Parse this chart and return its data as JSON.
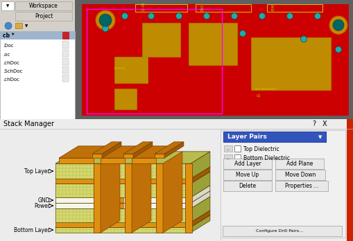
{
  "bg_color": "#ececec",
  "sidebar_bg": "#d4d0c8",
  "pcb_bg": "#606060",
  "pcb_red": "#cc0000",
  "orange_bright": "#e8900a",
  "orange_mid": "#c07008",
  "orange_dark": "#a06005",
  "green_light": "#d8dc80",
  "green_mid": "#c0c460",
  "green_dark": "#a8ac48",
  "green_hatch_bg": "#d0d470",
  "white_layer": "#f8f8f0",
  "white_layer_side": "#dcdcd0",
  "title_text": "Stack Manager",
  "layer_labels": [
    "Top Layer",
    "GND",
    "Power",
    "Bottom Layer"
  ],
  "right_panel_title": "Layer Pairs",
  "right_buttons": [
    "Add Layer",
    "Add Plane",
    "Move Up",
    "Move Down",
    "Delete",
    "Properties ..."
  ],
  "checkboxes": [
    "Top Dielectric",
    "Bottom Dielectric"
  ],
  "window_symbols": [
    "?",
    "X"
  ],
  "file_items": [
    "cb *",
    ".Doc",
    ".oc",
    ".chDoc",
    ".SchDoc",
    ".chDoc"
  ]
}
